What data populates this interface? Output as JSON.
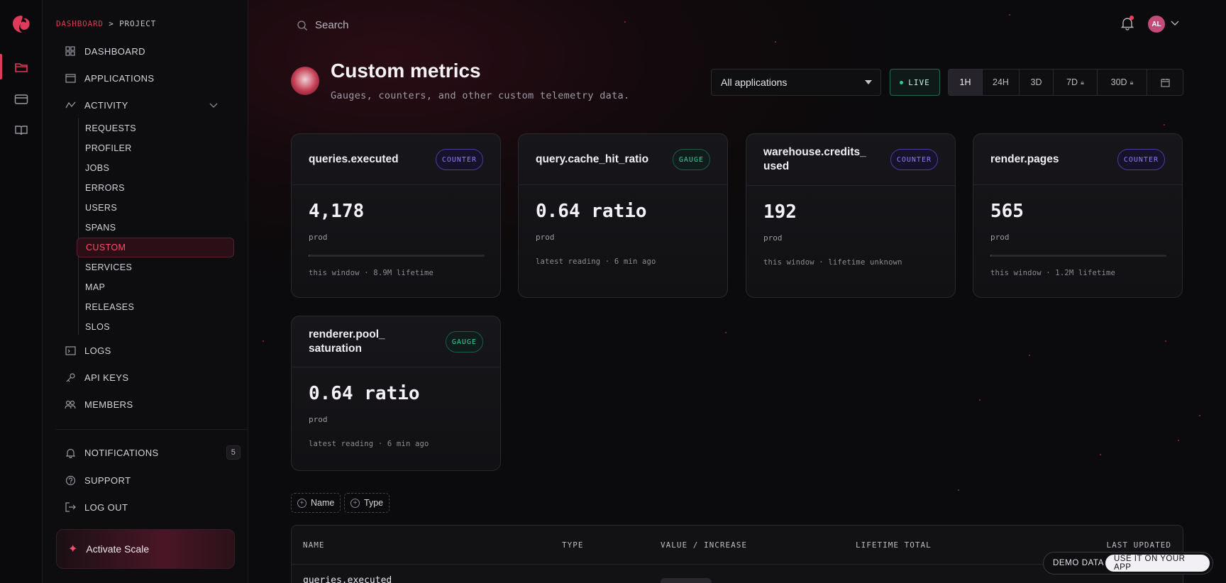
{
  "rail": {
    "icons": [
      "folder-icon",
      "card-icon",
      "book-icon"
    ]
  },
  "breadcrumb": {
    "root": "DASHBOARD",
    "sep": ">",
    "current": "PROJECT"
  },
  "sidebar": {
    "items": [
      {
        "label": "DASHBOARD",
        "icon": "grid-icon"
      },
      {
        "label": "APPLICATIONS",
        "icon": "window-icon"
      },
      {
        "label": "ACTIVITY",
        "icon": "activity-icon"
      }
    ],
    "activity_sub": [
      "REQUESTS",
      "PROFILER",
      "JOBS",
      "ERRORS",
      "USERS",
      "SPANS",
      "CUSTOM",
      "SERVICES",
      "MAP",
      "RELEASES",
      "SLOS"
    ],
    "active_sub": "CUSTOM",
    "lower": [
      {
        "label": "LOGS",
        "icon": "terminal-icon"
      },
      {
        "label": "API KEYS",
        "icon": "key-icon"
      },
      {
        "label": "MEMBERS",
        "icon": "users-icon"
      }
    ],
    "bottom": [
      {
        "label": "NOTIFICATIONS",
        "icon": "bell-icon",
        "count": "5"
      },
      {
        "label": "SUPPORT",
        "icon": "help-icon"
      },
      {
        "label": "LOG OUT",
        "icon": "logout-icon"
      }
    ],
    "activate_label": "Activate Scale"
  },
  "topbar": {
    "search_placeholder": "Search",
    "avatar_initials": "AL"
  },
  "page": {
    "title": "Custom metrics",
    "subtitle": "Gauges, counters, and other custom telemetry data."
  },
  "controls": {
    "app_select": "All applications",
    "live_label": "LIVE",
    "ranges": [
      "1H",
      "24H",
      "3D",
      "7D",
      "30D"
    ],
    "selected_range": "1H"
  },
  "cards": [
    {
      "name": "queries.executed",
      "type": "COUNTER",
      "value": "4,178",
      "env": "prod",
      "footer": "this window · 8.9M lifetime",
      "progress": 0.005
    },
    {
      "name": "query.cache_hit_ratio",
      "type": "GAUGE",
      "value": "0.64 ratio",
      "env": "prod",
      "footer": "latest reading · 6 min ago"
    },
    {
      "name": "warehouse.credits_\nused",
      "type": "COUNTER",
      "value": "192",
      "env": "prod",
      "footer": "this window · lifetime unknown"
    },
    {
      "name": "render.pages",
      "type": "COUNTER",
      "value": "565",
      "env": "prod",
      "footer": "this window · 1.2M lifetime",
      "progress": 0.0005
    },
    {
      "name": "renderer.pool_\nsaturation",
      "type": "GAUGE",
      "value": "0.64 ratio",
      "env": "prod",
      "footer": "latest reading · 6 min ago"
    }
  ],
  "filters": [
    "Name",
    "Type"
  ],
  "table": {
    "headers": [
      "NAME",
      "TYPE",
      "VALUE / INCREASE",
      "LIFETIME TOTAL",
      "LAST UPDATED"
    ],
    "rows": [
      {
        "name": "queries.executed"
      }
    ]
  },
  "demo": {
    "label": "DEMO DATA",
    "button": "USE IT ON YOUR APP"
  },
  "colors": {
    "accent": "#e0395b",
    "counter": "#8d7cff",
    "gauge": "#3ccaa2",
    "live": "#2bc79a"
  }
}
